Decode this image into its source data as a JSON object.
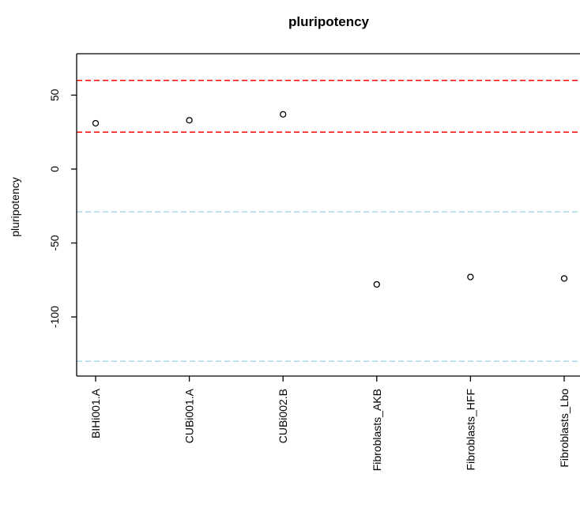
{
  "chart_data": {
    "type": "scatter",
    "title": "pluripotency",
    "xlabel": "",
    "ylabel": "pluripotency",
    "categories": [
      "BIHi001.A",
      "CUBi001.A",
      "CUBi002.B",
      "Fibroblasts_AKB",
      "Fibroblasts_HFF",
      "Fibroblasts_Lbo"
    ],
    "values": [
      31,
      33,
      37,
      -78,
      -73,
      -74
    ],
    "yticks": [
      -100,
      -50,
      0,
      50
    ],
    "ylim": [
      -140,
      78
    ],
    "reference_lines": [
      {
        "y": 60,
        "color": "#ff0000"
      },
      {
        "y": 25,
        "color": "#ff0000"
      },
      {
        "y": -29,
        "color": "#add8e6"
      },
      {
        "y": -130,
        "color": "#add8e6"
      }
    ],
    "grid": false,
    "legend": "none"
  }
}
